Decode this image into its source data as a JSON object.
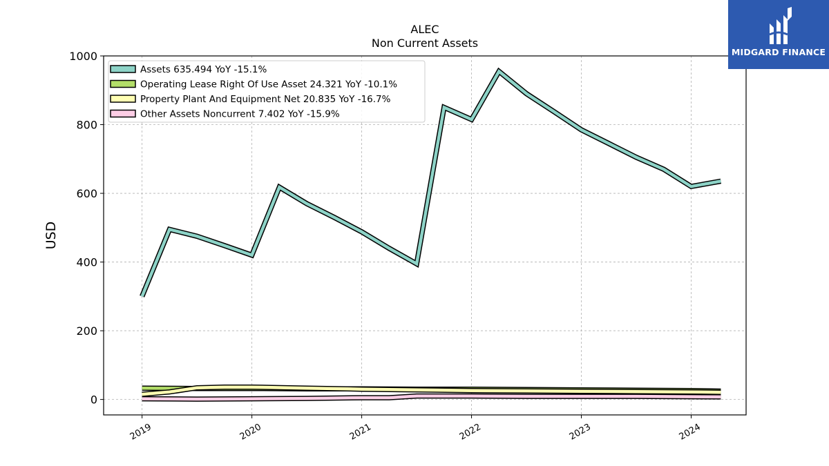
{
  "chart_data": {
    "type": "area",
    "title": "ALEC",
    "subtitle": "Non Current  Assets",
    "xlabel": "",
    "ylabel": "USD",
    "ylim": [
      -45,
      1000
    ],
    "xlim": [
      2018.65,
      2024.5
    ],
    "yticks": [
      0,
      200,
      400,
      600,
      800,
      1000
    ],
    "xticks": [
      2019,
      2020,
      2021,
      2022,
      2023,
      2024
    ],
    "xtick_labels": [
      "2019",
      "2020",
      "2021",
      "2022",
      "2023",
      "2024"
    ],
    "grid": true,
    "legend_position": "top-left",
    "series": [
      {
        "name": "Assets",
        "legend": "Assets  635.494 YoY -15.1%",
        "color": "#8dd3c7",
        "x": [
          2019.0,
          2019.25,
          2019.5,
          2019.75,
          2020.0,
          2020.25,
          2020.5,
          2020.75,
          2021.0,
          2021.25,
          2021.5,
          2021.75,
          2022.0,
          2022.25,
          2022.5,
          2022.75,
          2023.0,
          2023.25,
          2023.5,
          2023.75,
          2024.0,
          2024.27
        ],
        "values": [
          300,
          495,
          475,
          448,
          420,
          618,
          570,
          530,
          488,
          440,
          395,
          850,
          815,
          955,
          890,
          838,
          785,
          745,
          705,
          670,
          620,
          635.494
        ]
      },
      {
        "name": "Operating Lease Right Of Use Asset",
        "legend": "Operating Lease Right Of Use Asset  24.321 YoY -10.1%",
        "color": "#b3de69",
        "x": [
          2019.0,
          2019.5,
          2020.0,
          2020.5,
          2021.0,
          2021.5,
          2022.0,
          2022.5,
          2023.0,
          2023.5,
          2024.0,
          2024.27
        ],
        "values": [
          33,
          32,
          32,
          31,
          31,
          30,
          30,
          29,
          28,
          27,
          26,
          24.321
        ]
      },
      {
        "name": "Property Plant And Equipment Net",
        "legend": "Property Plant And Equipment Net  20.835 YoY -16.7%",
        "color": "#ffffb3",
        "x": [
          2019.0,
          2019.25,
          2019.5,
          2019.75,
          2020.0,
          2020.5,
          2021.0,
          2021.5,
          2022.0,
          2022.5,
          2023.0,
          2023.5,
          2024.0,
          2024.27
        ],
        "values": [
          15,
          22,
          34,
          36,
          36,
          33,
          30,
          28,
          26,
          25,
          24,
          23,
          22,
          20.835
        ]
      },
      {
        "name": "Other Assets Noncurrent",
        "legend": "Other Assets Noncurrent  7.402 YoY -15.9%",
        "color": "#fccde5",
        "x": [
          2019.0,
          2019.5,
          2020.0,
          2020.5,
          2021.0,
          2021.25,
          2021.5,
          2022.0,
          2022.5,
          2023.0,
          2023.25,
          2023.5,
          2024.0,
          2024.27
        ],
        "values": [
          2,
          1,
          2,
          3,
          5,
          5,
          10,
          10,
          9,
          9,
          9,
          9,
          8,
          7.402
        ]
      }
    ]
  },
  "logo": {
    "text": "MIDGARD FINANCE",
    "bg_color": "#2d5ab0"
  }
}
